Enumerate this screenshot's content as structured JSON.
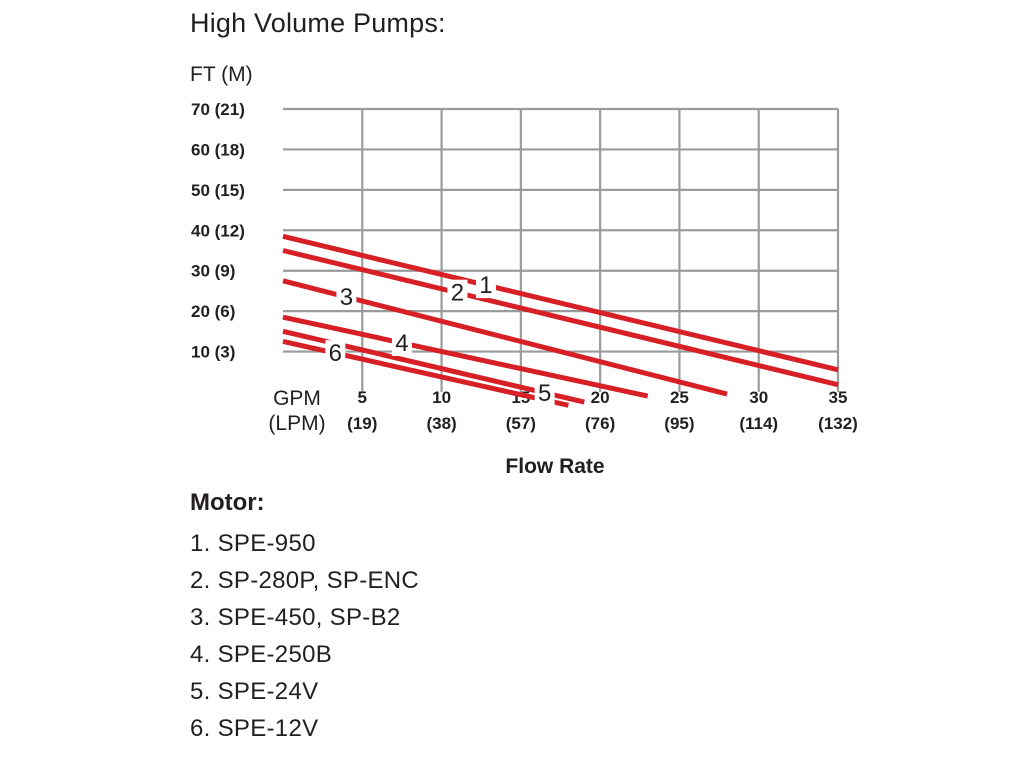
{
  "chart_data": {
    "type": "line",
    "title": "High Volume Pumps:",
    "ylabel": "FT (M)",
    "xlabel": "Flow Rate",
    "x_unit_labels": [
      "GPM",
      "(LPM)"
    ],
    "xlim": [
      0,
      35
    ],
    "ylim": [
      0,
      70
    ],
    "grid": true,
    "yticks": [
      {
        "value": 10,
        "label": "10 (3)"
      },
      {
        "value": 20,
        "label": "20 (6)"
      },
      {
        "value": 30,
        "label": "30 (9)"
      },
      {
        "value": 40,
        "label": "40 (12)"
      },
      {
        "value": 50,
        "label": "50 (15)"
      },
      {
        "value": 60,
        "label": "60 (18)"
      },
      {
        "value": 70,
        "label": "70 (21)"
      }
    ],
    "xticks": [
      {
        "value": 5,
        "label": "5",
        "sub": "(19)"
      },
      {
        "value": 10,
        "label": "10",
        "sub": "(38)"
      },
      {
        "value": 15,
        "label": "15",
        "sub": "(57)"
      },
      {
        "value": 20,
        "label": "20",
        "sub": "(76)"
      },
      {
        "value": 25,
        "label": "25",
        "sub": "(95)"
      },
      {
        "value": 30,
        "label": "30",
        "sub": "(114)"
      },
      {
        "value": 35,
        "label": "35",
        "sub": "(132)"
      }
    ],
    "series": [
      {
        "name": "1",
        "color": "#d71f26",
        "x": [
          0,
          35
        ],
        "y": [
          38.5,
          5.5
        ],
        "label_at": 12.8
      },
      {
        "name": "2",
        "color": "#d71f26",
        "x": [
          0,
          35
        ],
        "y": [
          35,
          1.8
        ],
        "label_at": 11
      },
      {
        "name": "3",
        "color": "#d71f26",
        "x": [
          0,
          28
        ],
        "y": [
          27.5,
          -0.5
        ],
        "label_at": 4
      },
      {
        "name": "4",
        "color": "#d71f26",
        "x": [
          0,
          23
        ],
        "y": [
          18.5,
          -1
        ],
        "label_at": 7.5
      },
      {
        "name": "5",
        "color": "#d71f26",
        "x": [
          0,
          19
        ],
        "y": [
          15,
          -2.5
        ],
        "label_at": 16.5
      },
      {
        "name": "6",
        "color": "#d71f26",
        "x": [
          0,
          18
        ],
        "y": [
          12.5,
          -3.3
        ],
        "label_at": 3.3
      }
    ]
  },
  "legend": {
    "title": "Motor:",
    "items": [
      "1. SPE-950",
      "2. SP-280P, SP-ENC",
      "3. SPE-450, SP-B2",
      "4. SPE-250B",
      "5. SPE-24V",
      "6. SPE-12V"
    ]
  },
  "colors": {
    "curve": "#d71f26",
    "grid": "#9b9b9b",
    "text": "#231f20"
  }
}
